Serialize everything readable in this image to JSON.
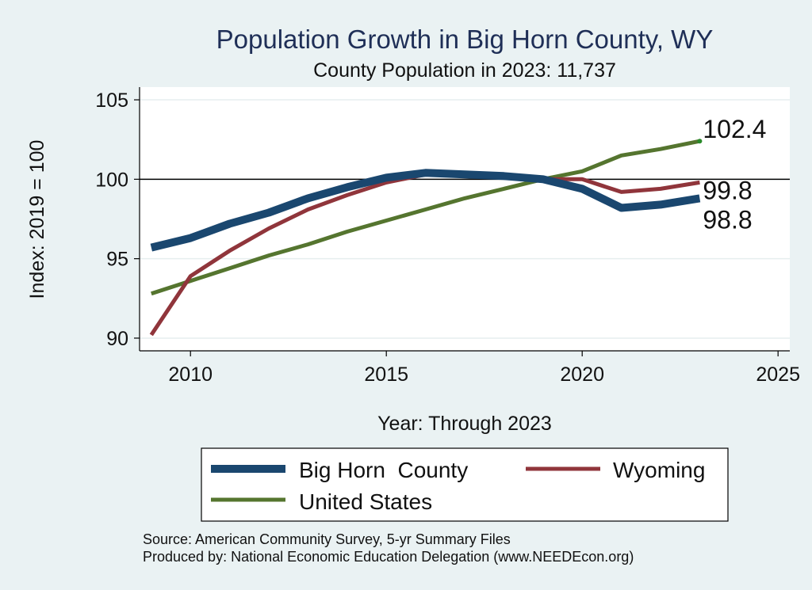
{
  "chart_data": {
    "type": "line",
    "title": "Population Growth in Big Horn County, WY",
    "subtitle": "County Population in 2023: 11,737",
    "xlabel": "Year: Through 2023",
    "ylabel": "Index: 2019 = 100",
    "xlim": [
      2008.7,
      2025.3
    ],
    "ylim": [
      89.2,
      105.8
    ],
    "xticks": [
      2010,
      2015,
      2020,
      2025
    ],
    "yticks": [
      90,
      95,
      100,
      105
    ],
    "reference_line_y": 100,
    "grid": true,
    "legend_position": "bottom",
    "x": [
      2009,
      2010,
      2011,
      2012,
      2013,
      2014,
      2015,
      2016,
      2017,
      2018,
      2019,
      2020,
      2021,
      2022,
      2023
    ],
    "series": [
      {
        "name": "Big Horn  County",
        "color": "#1a476f",
        "width": 10,
        "values": [
          95.7,
          96.3,
          97.2,
          97.9,
          98.8,
          99.5,
          100.1,
          100.4,
          100.3,
          100.2,
          100.0,
          99.4,
          98.2,
          98.4,
          98.8
        ],
        "end_label": "98.8"
      },
      {
        "name": "Wyoming",
        "color": "#90353b",
        "width": 5,
        "values": [
          90.2,
          93.9,
          95.5,
          96.9,
          98.1,
          99.0,
          99.8,
          100.3,
          100.3,
          100.1,
          100.0,
          100.0,
          99.2,
          99.4,
          99.8
        ],
        "end_label": "99.8"
      },
      {
        "name": "United States",
        "color": "#55752f",
        "width": 5,
        "values": [
          92.8,
          93.6,
          94.4,
          95.2,
          95.9,
          96.7,
          97.4,
          98.1,
          98.8,
          99.4,
          100.0,
          100.5,
          101.5,
          101.9,
          102.4
        ],
        "end_label": "102.4"
      }
    ]
  },
  "legend": {
    "items": [
      "Big Horn  County",
      "Wyoming",
      "United States"
    ]
  },
  "source": {
    "line1": "Source: American Community Survey, 5-yr Summary Files",
    "line2": "Produced by: National Economic Education Delegation (www.NEEDEcon.org)"
  }
}
